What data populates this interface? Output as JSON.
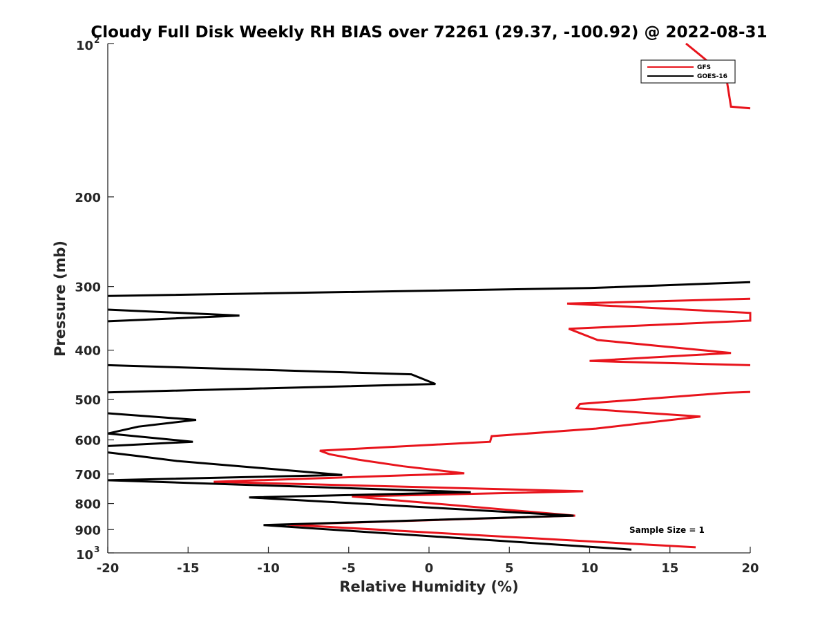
{
  "chart_data": {
    "type": "line",
    "title": "Cloudy Full Disk Weekly RH BIAS over 72261 (29.37, -100.92) @ 2022-08-31",
    "xlabel": "Relative Humidity (%)",
    "ylabel": "Pressure (mb)",
    "xlim": [
      -20,
      20
    ],
    "ylim": [
      100,
      1000
    ],
    "y_scale": "log",
    "y_reversed": true,
    "x_ticks": [
      "-20",
      "-15",
      "-10",
      "-5",
      "0",
      "5",
      "10",
      "15",
      "20"
    ],
    "y_ticks": [
      {
        "value": 100,
        "base": "10",
        "exp": "2"
      },
      {
        "value": 200,
        "label": "200"
      },
      {
        "value": 300,
        "label": "300"
      },
      {
        "value": 400,
        "label": "400"
      },
      {
        "value": 500,
        "label": "500"
      },
      {
        "value": 600,
        "label": "600"
      },
      {
        "value": 700,
        "label": "700"
      },
      {
        "value": 800,
        "label": "800"
      },
      {
        "value": 900,
        "label": "900"
      },
      {
        "value": 1000,
        "base": "10",
        "exp": "3"
      }
    ],
    "grid": false,
    "legend_position": "top-right",
    "annotation": "Sample Size = 1",
    "series": [
      {
        "name": "GFS",
        "color": "#e8141c",
        "points": [
          [
            16.6,
            975
          ],
          [
            -8.8,
            880
          ],
          [
            9.1,
            845
          ],
          [
            -4.8,
            775
          ],
          [
            9.6,
            757
          ],
          [
            -13.4,
            725
          ],
          [
            2.2,
            698
          ],
          [
            -1.6,
            676
          ],
          [
            -4.4,
            656
          ],
          [
            -6.2,
            640
          ],
          [
            -6.8,
            630
          ],
          [
            3.8,
            605
          ],
          [
            3.9,
            590
          ],
          [
            10.4,
            570
          ],
          [
            16.9,
            540
          ],
          [
            9.2,
            520
          ],
          [
            9.4,
            510
          ],
          [
            18.5,
            485
          ],
          [
            20.0,
            483
          ],
          [
            null,
            null
          ],
          [
            20.0,
            428
          ],
          [
            10.0,
            420
          ],
          [
            18.8,
            405
          ],
          [
            10.5,
            382
          ],
          [
            8.7,
            363
          ],
          [
            20.0,
            350
          ],
          [
            20.0,
            338
          ],
          [
            8.6,
            324
          ],
          [
            20.0,
            317
          ],
          [
            null,
            null
          ],
          [
            20.0,
            134
          ],
          [
            18.8,
            133
          ],
          [
            18.5,
            116
          ],
          [
            16.0,
            100
          ]
        ]
      },
      {
        "name": "GOES-16",
        "color": "#000000",
        "points": [
          [
            12.6,
            985
          ],
          [
            -10.3,
            882
          ],
          [
            9.0,
            845
          ],
          [
            -11.2,
            778
          ],
          [
            2.6,
            760
          ],
          [
            -20.0,
            720
          ],
          [
            -5.4,
            703
          ],
          [
            -15.7,
            660
          ],
          [
            -18.2,
            645
          ],
          [
            -20.0,
            635
          ],
          [
            null,
            null
          ],
          [
            -20.0,
            617
          ],
          [
            -14.7,
            605
          ],
          [
            -20.0,
            583
          ],
          [
            -18.1,
            565
          ],
          [
            -14.5,
            548
          ],
          [
            -20.0,
            532
          ],
          [
            null,
            null
          ],
          [
            -20.0,
            484
          ],
          [
            0.4,
            466
          ],
          [
            -1.1,
            446
          ],
          [
            -20.0,
            428
          ],
          [
            null,
            null
          ],
          [
            -20.0,
            351
          ],
          [
            -11.8,
            342
          ],
          [
            -20.0,
            333
          ],
          [
            null,
            null
          ],
          [
            -20.0,
            313
          ],
          [
            10.0,
            302
          ],
          [
            20.0,
            294
          ]
        ]
      }
    ]
  }
}
